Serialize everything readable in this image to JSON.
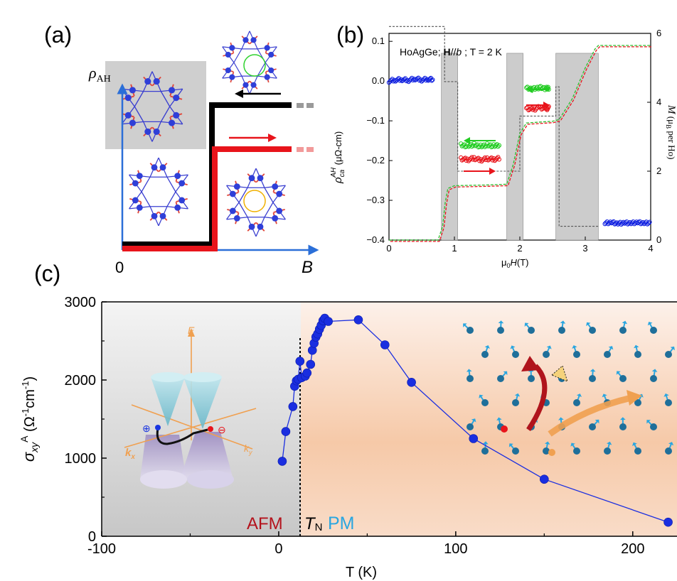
{
  "panel_a": {
    "label": "(a)",
    "ylabel": "ρ",
    "ylabel_sub": "AH",
    "x0": "0",
    "xlabel": "B",
    "colors": {
      "forward": "#e8141b",
      "backward": "#000000",
      "spins": "#2f3fd8"
    }
  },
  "panel_b": {
    "label": "(b)",
    "title_prefix": "HoAgGe; ",
    "title_bold": "H",
    "title_mid": "//",
    "title_italic": "b",
    "title_suffix": " ; T = 2 K",
    "ylabel_left": "ρ",
    "ylabel_left_sub": "ca",
    "ylabel_left_sup": "AH",
    "ylabel_left_unit": " (μΩ-cm)",
    "ylabel_right": "M",
    "ylabel_right_unit": " (μ",
    "ylabel_right_unit_sub": "B",
    "ylabel_right_unit_tail": " per Ho)",
    "xlabel_prefix": "μ",
    "xlabel_sub": "0",
    "xlabel_italic": "H",
    "xlabel_suffix": "(T)",
    "xticks": [
      "0",
      "1",
      "2",
      "3",
      "4"
    ],
    "yticks_left": [
      "0.1",
      "0.0",
      "−0.1",
      "−0.2",
      "−0.3",
      "−0.4"
    ],
    "yticks_right": [
      "6",
      "4",
      "2",
      "0"
    ]
  },
  "panel_c": {
    "label": "(c)",
    "ylabel_prefix": "σ",
    "ylabel_sub": "xy",
    "ylabel_sup": "A",
    "ylabel_unit": " (Ω",
    "ylabel_unit_sup1": "-1",
    "ylabel_unit_mid": "cm",
    "ylabel_unit_sup2": "-1",
    "ylabel_unit_tail": ")",
    "xlabel": "T (K)",
    "xticks": [
      "-100",
      "0",
      "100",
      "200"
    ],
    "yticks": [
      "0",
      "1000",
      "2000",
      "3000"
    ],
    "afm_label": "AFM",
    "tn_label": "T",
    "tn_sub": "N",
    "pm_label": "PM",
    "inset_E": "E",
    "inset_kx": "k",
    "inset_kx_sub": "x",
    "inset_ky": "k",
    "inset_ky_sub": "y",
    "colors": {
      "line": "#1a2ee0",
      "afm": "#b4121c",
      "pm": "#2aa6e0",
      "arrow_orange": "#f0a050",
      "arrow_red": "#b0141c"
    }
  },
  "chart_data": [
    {
      "type": "scatter",
      "panel": "b",
      "xlim": [
        0,
        4
      ],
      "ylim": [
        -0.4,
        0.12
      ],
      "ylim_right": [
        0,
        6
      ],
      "shaded_field_ranges_T": [
        [
          0.8,
          1.05
        ],
        [
          1.8,
          2.05
        ],
        [
          2.55,
          3.2
        ]
      ],
      "series": [
        {
          "points": [
            [
              0.0,
              0.0
            ],
            [
              0.1,
              0.003
            ],
            [
              0.2,
              0.004
            ],
            [
              0.3,
              0.002
            ],
            [
              0.4,
              0.006
            ],
            [
              0.5,
              0.003
            ],
            [
              0.6,
              0.005
            ],
            [
              0.68,
              0.003
            ]
          ]
        },
        {
          "points": [
            [
              1.1,
              -0.161
            ],
            [
              1.2,
              -0.163
            ],
            [
              1.3,
              -0.16
            ],
            [
              1.4,
              -0.164
            ],
            [
              1.5,
              -0.161
            ],
            [
              1.6,
              -0.163
            ],
            [
              1.7,
              -0.16
            ]
          ]
        },
        {
          "points": [
            [
              1.1,
              -0.195
            ],
            [
              1.2,
              -0.198
            ],
            [
              1.3,
              -0.194
            ],
            [
              1.4,
              -0.199
            ],
            [
              1.5,
              -0.195
            ],
            [
              1.6,
              -0.197
            ],
            [
              1.7,
              -0.194
            ]
          ]
        },
        {
          "points": [
            [
              2.1,
              -0.018
            ],
            [
              2.2,
              -0.02
            ],
            [
              2.3,
              -0.016
            ],
            [
              2.4,
              -0.019
            ],
            [
              2.45,
              -0.017
            ]
          ]
        },
        {
          "points": [
            [
              2.1,
              -0.068
            ],
            [
              2.2,
              -0.072
            ],
            [
              2.3,
              -0.066
            ],
            [
              2.4,
              -0.07
            ],
            [
              2.45,
              -0.067
            ]
          ]
        },
        {
          "points": [
            [
              3.3,
              -0.358
            ],
            [
              3.4,
              -0.356
            ],
            [
              3.5,
              -0.359
            ],
            [
              3.6,
              -0.357
            ],
            [
              3.7,
              -0.358
            ],
            [
              3.8,
              -0.356
            ],
            [
              3.9,
              -0.358
            ],
            [
              4.0,
              -0.357
            ]
          ]
        },
        {
          "points_right_axis": [
            [
              0,
              0
            ],
            [
              0.75,
              0
            ],
            [
              0.82,
              0.4
            ],
            [
              0.86,
              1.1
            ],
            [
              0.9,
              1.5
            ],
            [
              1.0,
              1.58
            ],
            [
              1.5,
              1.6
            ],
            [
              1.8,
              1.62
            ],
            [
              1.9,
              2.2
            ],
            [
              2.0,
              3.1
            ],
            [
              2.1,
              3.4
            ],
            [
              2.5,
              3.45
            ],
            [
              2.6,
              3.5
            ],
            [
              2.8,
              4.1
            ],
            [
              3.0,
              5.0
            ],
            [
              3.15,
              5.55
            ],
            [
              3.2,
              5.65
            ],
            [
              4.0,
              5.65
            ]
          ]
        },
        {
          "points_right_axis": [
            [
              0,
              6.2
            ],
            [
              0.85,
              6.2
            ],
            [
              0.85,
              4.6
            ],
            [
              1.05,
              4.6
            ],
            [
              1.05,
              2.0
            ],
            [
              2.0,
              2.0
            ],
            [
              2.0,
              3.6
            ],
            [
              2.55,
              3.6
            ],
            [
              2.55,
              4.45
            ],
            [
              2.6,
              4.45
            ],
            [
              2.6,
              0.4
            ],
            [
              3.2,
              0.4
            ]
          ]
        }
      ]
    },
    {
      "type": "line",
      "panel": "c",
      "xlim": [
        -100,
        225
      ],
      "ylim": [
        0,
        3000
      ],
      "transition_T": 12,
      "points": [
        [
          2,
          960
        ],
        [
          4,
          1340
        ],
        [
          8,
          1660
        ],
        [
          9,
          1920
        ],
        [
          10,
          1990
        ],
        [
          11,
          2010
        ],
        [
          12,
          2240
        ],
        [
          13,
          2030
        ],
        [
          15,
          2050
        ],
        [
          16,
          2090
        ],
        [
          18,
          2200
        ],
        [
          19,
          2380
        ],
        [
          20,
          2470
        ],
        [
          21,
          2550
        ],
        [
          22,
          2590
        ],
        [
          23,
          2650
        ],
        [
          24,
          2700
        ],
        [
          25,
          2760
        ],
        [
          26,
          2790
        ],
        [
          28,
          2750
        ],
        [
          45,
          2770
        ],
        [
          60,
          2450
        ],
        [
          75,
          1970
        ],
        [
          110,
          1250
        ],
        [
          150,
          730
        ],
        [
          220,
          180
        ]
      ]
    }
  ]
}
